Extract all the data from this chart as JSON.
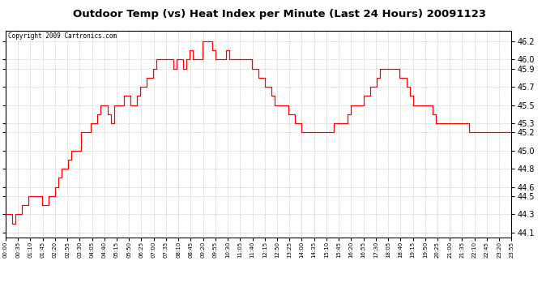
{
  "title": "Outdoor Temp (vs) Heat Index per Minute (Last 24 Hours) 20091123",
  "copyright": "Copyright 2009 Cartronics.com",
  "line_color": "#ff0000",
  "background_color": "#ffffff",
  "grid_color": "#bbbbbb",
  "title_fontsize": 9.5,
  "yticks": [
    44.1,
    44.3,
    44.5,
    44.6,
    44.8,
    45.0,
    45.2,
    45.3,
    45.5,
    45.7,
    45.9,
    46.0,
    46.2
  ],
  "ylim": [
    44.05,
    46.32
  ],
  "xtick_labels": [
    "00:00",
    "00:35",
    "01:10",
    "01:45",
    "02:20",
    "02:55",
    "03:30",
    "04:05",
    "04:40",
    "05:15",
    "05:50",
    "06:25",
    "07:00",
    "07:35",
    "08:10",
    "08:45",
    "09:20",
    "09:55",
    "10:30",
    "11:05",
    "11:40",
    "12:15",
    "12:50",
    "13:25",
    "14:00",
    "14:35",
    "15:10",
    "15:45",
    "16:20",
    "16:55",
    "17:30",
    "18:05",
    "18:40",
    "19:15",
    "19:50",
    "20:25",
    "21:00",
    "21:35",
    "22:10",
    "22:45",
    "23:20",
    "23:55"
  ],
  "data_values": [
    44.3,
    44.3,
    44.2,
    44.3,
    44.3,
    44.4,
    44.4,
    44.5,
    44.5,
    44.5,
    44.5,
    44.4,
    44.4,
    44.5,
    44.5,
    44.6,
    44.7,
    44.8,
    44.8,
    44.9,
    45.0,
    45.0,
    45.0,
    45.2,
    45.2,
    45.2,
    45.3,
    45.3,
    45.4,
    45.5,
    45.5,
    45.4,
    45.3,
    45.5,
    45.5,
    45.5,
    45.6,
    45.6,
    45.5,
    45.5,
    45.6,
    45.7,
    45.7,
    45.8,
    45.8,
    45.9,
    46.0,
    46.0,
    46.0,
    46.0,
    46.0,
    45.9,
    46.0,
    46.0,
    45.9,
    46.0,
    46.1,
    46.0,
    46.0,
    46.0,
    46.2,
    46.2,
    46.2,
    46.1,
    46.0,
    46.0,
    46.0,
    46.1,
    46.0,
    46.0,
    46.0,
    46.0,
    46.0,
    46.0,
    46.0,
    45.9,
    45.9,
    45.8,
    45.8,
    45.7,
    45.7,
    45.6,
    45.5,
    45.5,
    45.5,
    45.5,
    45.4,
    45.4,
    45.3,
    45.3,
    45.2,
    45.2,
    45.2,
    45.2,
    45.2,
    45.2,
    45.2,
    45.2,
    45.2,
    45.2,
    45.3,
    45.3,
    45.3,
    45.3,
    45.4,
    45.5,
    45.5,
    45.5,
    45.5,
    45.6,
    45.6,
    45.7,
    45.7,
    45.8,
    45.9,
    45.9,
    45.9,
    45.9,
    45.9,
    45.9,
    45.8,
    45.8,
    45.7,
    45.6,
    45.5,
    45.5,
    45.5,
    45.5,
    45.5,
    45.5,
    45.4,
    45.3,
    45.3,
    45.3,
    45.3,
    45.3,
    45.3,
    45.3,
    45.3,
    45.3,
    45.3,
    45.2,
    45.2,
    45.2,
    45.2,
    45.2,
    45.2,
    45.2,
    45.2,
    45.2,
    45.2,
    45.2,
    45.2,
    45.2,
    45.2
  ]
}
